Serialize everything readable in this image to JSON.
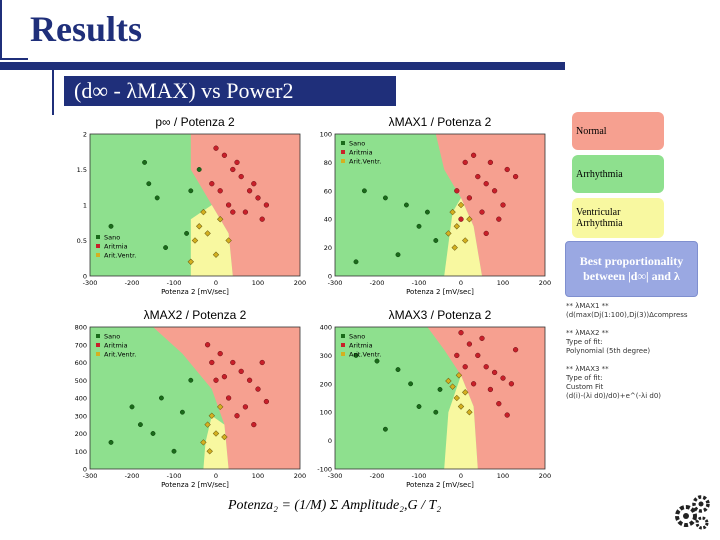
{
  "slide": {
    "title": "Results",
    "subtitle": "(d∞ - λMAX) vs Power2"
  },
  "legend": {
    "normal": "Normal",
    "arrhythmia": "Arrhythmia",
    "ventricular": "Ventricular Arrhythmia",
    "colors": {
      "normal": "#f6a090",
      "arrhythmia": "#8ee08e",
      "ventricular": "#f8f8a0"
    }
  },
  "best": {
    "line1": "Best proportionality",
    "line2": "between |d∞| and λ"
  },
  "code_lines": [
    "** λMAX1 **",
    "(d(max(Dj(1:100),Dj(3))Δcompress",
    "",
    "** λMAX2 **",
    "Type of fit:",
    "Polynomial (5th degree)",
    "",
    "** λMAX3 **",
    "Type of fit:",
    "Custom Fit",
    "(d(i)-(λi d0)/d0)+e^(-λi d0)"
  ],
  "formula": "Potenza₂ = (1/M) Σ Amplitude₂,G / T₂",
  "chart_data": [
    {
      "type": "scatter",
      "title": "p∞ / Potenza 2",
      "xlabel": "Potenza 2 [mV/sec]",
      "ylabel": "",
      "xlim": [
        -300,
        200
      ],
      "ylim": [
        0,
        2
      ],
      "xticks": [
        -300,
        -200,
        -100,
        0,
        100,
        200
      ],
      "yticks": [
        0,
        0.5,
        1,
        1.5,
        2
      ],
      "ytick_labels": [
        "0",
        "0.5",
        "1",
        "1.5",
        "2"
      ],
      "legend": [
        "Sano",
        "Aritmia",
        "Arit.Ventr."
      ],
      "legend_position": "bottom-left",
      "series": [
        {
          "name": "Sano",
          "color": "#1a6b1a",
          "points": [
            [
              -170,
              1.6
            ],
            [
              -160,
              1.3
            ],
            [
              -140,
              1.1
            ],
            [
              -70,
              0.6
            ],
            [
              -60,
              1.2
            ],
            [
              -250,
              0.7
            ],
            [
              -120,
              0.4
            ],
            [
              -40,
              1.5
            ]
          ]
        },
        {
          "name": "Aritmia",
          "color": "#c8202a",
          "points": [
            [
              20,
              1.7
            ],
            [
              40,
              1.5
            ],
            [
              60,
              1.4
            ],
            [
              80,
              1.2
            ],
            [
              100,
              1.1
            ],
            [
              10,
              1.2
            ],
            [
              30,
              1.0
            ],
            [
              70,
              0.9
            ],
            [
              110,
              0.8
            ],
            [
              -10,
              1.3
            ],
            [
              50,
              1.6
            ],
            [
              90,
              1.3
            ],
            [
              120,
              1.0
            ],
            [
              0,
              1.8
            ],
            [
              40,
              0.9
            ]
          ]
        },
        {
          "name": "Arit.Ventr.",
          "color": "#d4b020",
          "points": [
            [
              -50,
              0.5
            ],
            [
              -40,
              0.7
            ],
            [
              -30,
              0.9
            ],
            [
              -20,
              0.6
            ],
            [
              0,
              0.3
            ],
            [
              10,
              0.8
            ],
            [
              -60,
              0.2
            ],
            [
              30,
              0.5
            ]
          ]
        }
      ]
    },
    {
      "type": "scatter",
      "title": "λMAX1 / Potenza 2",
      "xlabel": "Potenza 2 [mV/sec]",
      "ylabel": "",
      "xlim": [
        -300,
        200
      ],
      "ylim": [
        0,
        100
      ],
      "xticks": [
        -300,
        -200,
        -100,
        0,
        100,
        200
      ],
      "yticks": [
        0,
        20,
        40,
        60,
        80,
        100
      ],
      "ytick_labels": [
        "0",
        "20",
        "40",
        "60",
        "80",
        "100"
      ],
      "legend": [
        "Sano",
        "Aritmia",
        "Arit.Ventr."
      ],
      "legend_position": "top-left",
      "series": [
        {
          "name": "Sano",
          "color": "#1a6b1a",
          "points": [
            [
              -230,
              60
            ],
            [
              -180,
              55
            ],
            [
              -130,
              50
            ],
            [
              -100,
              35
            ],
            [
              -60,
              25
            ],
            [
              -250,
              10
            ],
            [
              -150,
              15
            ],
            [
              -80,
              45
            ]
          ]
        },
        {
          "name": "Aritmia",
          "color": "#c8202a",
          "points": [
            [
              10,
              80
            ],
            [
              40,
              70
            ],
            [
              60,
              65
            ],
            [
              80,
              60
            ],
            [
              110,
              75
            ],
            [
              130,
              70
            ],
            [
              20,
              55
            ],
            [
              50,
              45
            ],
            [
              90,
              40
            ],
            [
              -10,
              60
            ],
            [
              70,
              80
            ],
            [
              100,
              50
            ],
            [
              30,
              85
            ],
            [
              0,
              40
            ],
            [
              60,
              30
            ]
          ]
        },
        {
          "name": "Arit.Ventr.",
          "color": "#d4b020",
          "points": [
            [
              -20,
              45
            ],
            [
              -10,
              35
            ],
            [
              0,
              50
            ],
            [
              -30,
              30
            ],
            [
              10,
              25
            ],
            [
              20,
              40
            ],
            [
              -15,
              20
            ]
          ]
        }
      ]
    },
    {
      "type": "scatter",
      "title": "λMAX2 / Potenza 2",
      "xlabel": "Potenza 2 [mV/sec]",
      "ylabel": "",
      "xlim": [
        -300,
        200
      ],
      "ylim": [
        0,
        800
      ],
      "xticks": [
        -300,
        -200,
        -100,
        0,
        100,
        200
      ],
      "yticks": [
        0,
        100,
        200,
        300,
        400,
        500,
        600,
        700,
        800
      ],
      "ytick_labels": [
        "0",
        "100",
        "200",
        "300",
        "400",
        "500",
        "600",
        "700",
        "800"
      ],
      "legend": [
        "Sano",
        "Aritmia",
        "Arit.Ventr."
      ],
      "legend_position": "top-left",
      "series": [
        {
          "name": "Sano",
          "color": "#1a6b1a",
          "points": [
            [
              -250,
              150
            ],
            [
              -200,
              350
            ],
            [
              -180,
              250
            ],
            [
              -150,
              200
            ],
            [
              -100,
              100
            ],
            [
              -130,
              400
            ],
            [
              -80,
              320
            ],
            [
              -60,
              500
            ]
          ]
        },
        {
          "name": "Aritmia",
          "color": "#c8202a",
          "points": [
            [
              -20,
              700
            ],
            [
              10,
              650
            ],
            [
              40,
              600
            ],
            [
              60,
              550
            ],
            [
              80,
              500
            ],
            [
              100,
              450
            ],
            [
              30,
              400
            ],
            [
              70,
              350
            ],
            [
              120,
              380
            ],
            [
              0,
              500
            ],
            [
              50,
              300
            ],
            [
              90,
              250
            ],
            [
              -10,
              600
            ],
            [
              20,
              520
            ],
            [
              110,
              600
            ]
          ]
        },
        {
          "name": "Arit.Ventr.",
          "color": "#d4b020",
          "points": [
            [
              -20,
              250
            ],
            [
              -10,
              300
            ],
            [
              0,
              200
            ],
            [
              -30,
              150
            ],
            [
              10,
              350
            ],
            [
              -15,
              100
            ],
            [
              20,
              180
            ]
          ]
        }
      ]
    },
    {
      "type": "scatter",
      "title": "λMAX3 / Potenza 2",
      "xlabel": "Potenza 2 [mV/sec]",
      "ylabel": "",
      "xlim": [
        -300,
        200
      ],
      "ylim": [
        -100,
        400
      ],
      "xticks": [
        -300,
        -200,
        -100,
        0,
        100,
        200
      ],
      "yticks": [
        -100,
        0,
        100,
        200,
        300,
        400
      ],
      "ytick_labels": [
        "-100",
        "0",
        "100",
        "200",
        "300",
        "400"
      ],
      "legend": [
        "Sano",
        "Aritmia",
        "Arit.Ventr."
      ],
      "legend_position": "top-left",
      "series": [
        {
          "name": "Sano",
          "color": "#1a6b1a",
          "points": [
            [
              -250,
              300
            ],
            [
              -200,
              280
            ],
            [
              -150,
              250
            ],
            [
              -120,
              200
            ],
            [
              -100,
              120
            ],
            [
              -60,
              100
            ],
            [
              -180,
              40
            ],
            [
              -50,
              180
            ]
          ]
        },
        {
          "name": "Aritmia",
          "color": "#c8202a",
          "points": [
            [
              0,
              380
            ],
            [
              20,
              340
            ],
            [
              40,
              300
            ],
            [
              60,
              260
            ],
            [
              80,
              240
            ],
            [
              100,
              220
            ],
            [
              120,
              200
            ],
            [
              30,
              200
            ],
            [
              70,
              180
            ],
            [
              90,
              130
            ],
            [
              110,
              90
            ],
            [
              10,
              260
            ],
            [
              50,
              360
            ],
            [
              130,
              320
            ],
            [
              -10,
              300
            ]
          ]
        },
        {
          "name": "Arit.Ventr.",
          "color": "#d4b020",
          "points": [
            [
              -20,
              190
            ],
            [
              -10,
              150
            ],
            [
              0,
              120
            ],
            [
              10,
              170
            ],
            [
              20,
              100
            ],
            [
              -30,
              210
            ],
            [
              -5,
              230
            ]
          ]
        }
      ]
    }
  ]
}
